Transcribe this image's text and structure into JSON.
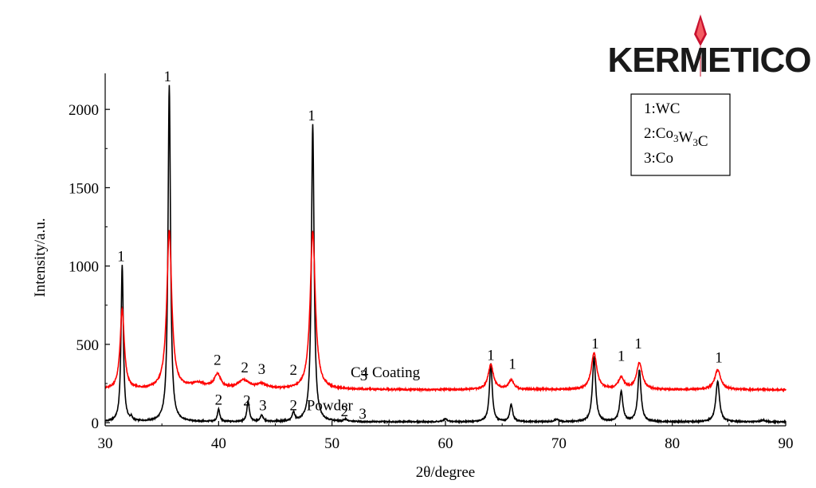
{
  "logo": {
    "text": "KERMETICO"
  },
  "legend": {
    "items": [
      {
        "num": "1:",
        "main": "WC",
        "sub1": "",
        "mid": "",
        "sub2": "",
        "tail": ""
      },
      {
        "num": "2:",
        "main": "Co",
        "sub1": "3",
        "mid": "W",
        "sub2": "3",
        "tail": "C"
      },
      {
        "num": "3:",
        "main": "Co",
        "sub1": "",
        "mid": "",
        "sub2": "",
        "tail": ""
      }
    ]
  },
  "chart_data": {
    "type": "line",
    "xlabel": "2θ/degree",
    "ylabel": "Intensity/a.u.",
    "xlim": [
      30,
      90
    ],
    "ylim": [
      -20,
      2230
    ],
    "xticks": [
      30,
      40,
      50,
      60,
      70,
      80,
      90
    ],
    "yticks": [
      0,
      500,
      1000,
      1500,
      2000
    ],
    "grid": false,
    "series": [
      {
        "name": "Powder",
        "color": "#000000",
        "baseline": 5,
        "peaks": [
          {
            "x": 31.5,
            "h": 1000,
            "w": 0.12
          },
          {
            "x": 32.3,
            "h": 20,
            "w": 0.1
          },
          {
            "x": 35.65,
            "h": 2150,
            "w": 0.13
          },
          {
            "x": 40.0,
            "h": 80,
            "w": 0.12
          },
          {
            "x": 42.6,
            "h": 130,
            "w": 0.13
          },
          {
            "x": 43.8,
            "h": 40,
            "w": 0.15
          },
          {
            "x": 46.6,
            "h": 55,
            "w": 0.13
          },
          {
            "x": 48.3,
            "h": 1900,
            "w": 0.14
          },
          {
            "x": 51.2,
            "h": 15,
            "w": 0.15
          },
          {
            "x": 60.0,
            "h": 18,
            "w": 0.2
          },
          {
            "x": 64.0,
            "h": 370,
            "w": 0.15
          },
          {
            "x": 65.8,
            "h": 110,
            "w": 0.15
          },
          {
            "x": 69.8,
            "h": 15,
            "w": 0.2
          },
          {
            "x": 73.1,
            "h": 410,
            "w": 0.17
          },
          {
            "x": 75.5,
            "h": 190,
            "w": 0.17
          },
          {
            "x": 77.1,
            "h": 330,
            "w": 0.17
          },
          {
            "x": 84.0,
            "h": 260,
            "w": 0.19
          },
          {
            "x": 88.0,
            "h": 12,
            "w": 0.2
          }
        ]
      },
      {
        "name": "C4 Coating",
        "color": "#ff0000",
        "baseline": 210,
        "peaks": [
          {
            "x": 31.5,
            "h": 510,
            "w": 0.22
          },
          {
            "x": 35.65,
            "h": 1010,
            "w": 0.26
          },
          {
            "x": 38.2,
            "h": 35,
            "w": 0.8
          },
          {
            "x": 39.9,
            "h": 90,
            "w": 0.35
          },
          {
            "x": 42.2,
            "h": 55,
            "w": 0.6
          },
          {
            "x": 43.8,
            "h": 30,
            "w": 0.6
          },
          {
            "x": 48.3,
            "h": 1010,
            "w": 0.27
          },
          {
            "x": 64.0,
            "h": 160,
            "w": 0.28
          },
          {
            "x": 65.8,
            "h": 60,
            "w": 0.28
          },
          {
            "x": 73.1,
            "h": 230,
            "w": 0.3
          },
          {
            "x": 75.5,
            "h": 75,
            "w": 0.3
          },
          {
            "x": 77.1,
            "h": 170,
            "w": 0.3
          },
          {
            "x": 84.0,
            "h": 125,
            "w": 0.32
          }
        ]
      }
    ],
    "annotations": [
      {
        "text": "1",
        "x": 31.4,
        "y": 1030
      },
      {
        "text": "1",
        "x": 35.5,
        "y": 2180
      },
      {
        "text": "1",
        "x": 48.2,
        "y": 1930
      },
      {
        "text": "2",
        "x": 39.9,
        "y": 370
      },
      {
        "text": "2",
        "x": 42.3,
        "y": 320
      },
      {
        "text": "3",
        "x": 43.8,
        "y": 310
      },
      {
        "text": "2",
        "x": 46.6,
        "y": 305
      },
      {
        "text": "3",
        "x": 52.8,
        "y": 270
      },
      {
        "text": "2",
        "x": 40.0,
        "y": 115
      },
      {
        "text": "2",
        "x": 42.5,
        "y": 110
      },
      {
        "text": "3",
        "x": 43.9,
        "y": 80
      },
      {
        "text": "2",
        "x": 46.6,
        "y": 80
      },
      {
        "text": "2",
        "x": 51.1,
        "y": 40
      },
      {
        "text": "3",
        "x": 52.7,
        "y": 25
      },
      {
        "text": "1",
        "x": 64.0,
        "y": 400
      },
      {
        "text": "1",
        "x": 65.9,
        "y": 345
      },
      {
        "text": "1",
        "x": 73.2,
        "y": 475
      },
      {
        "text": "1",
        "x": 75.5,
        "y": 395
      },
      {
        "text": "1",
        "x": 77.0,
        "y": 475
      },
      {
        "text": "1",
        "x": 84.1,
        "y": 385
      }
    ],
    "series_labels": [
      {
        "text": "C4 Coating",
        "x": 54.7,
        "y": 290
      },
      {
        "text": "Powder",
        "x": 49.8,
        "y": 80
      }
    ]
  }
}
